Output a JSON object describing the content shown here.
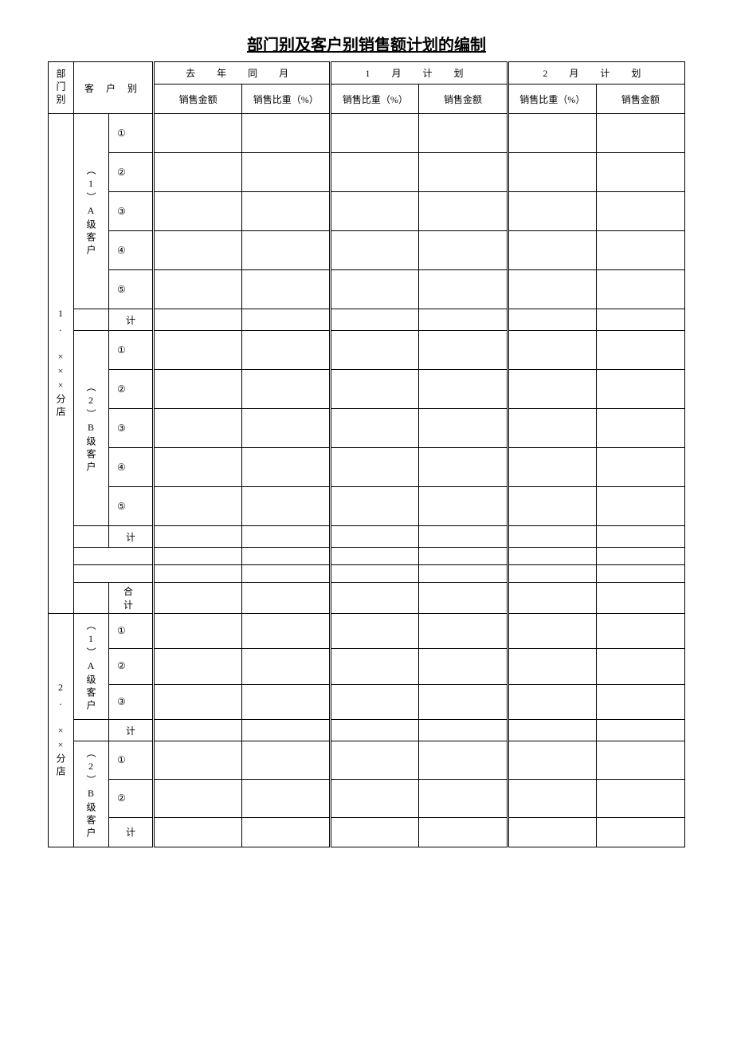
{
  "title": "部门别及客户别销售额计划的编制",
  "header": {
    "dept": "部门别",
    "customer": "客 户 别",
    "groups": {
      "last_year": "去 年 同 月",
      "month1": "1 月 计 划",
      "month2": "2 月 计 划"
    },
    "sub": {
      "sales_amount": "销售金额",
      "sales_ratio": "销售比重（%）"
    }
  },
  "dept1": {
    "label": "1.\n\n×××分店",
    "groupA": {
      "label": "（1）A级客户",
      "items": [
        "①",
        "②",
        "③",
        "④",
        "⑤"
      ],
      "subtotal": "计"
    },
    "groupB": {
      "label": "（2）B级客户",
      "items": [
        "①",
        "②",
        "③",
        "④",
        "⑤"
      ],
      "subtotal": "计"
    },
    "total": "合　计"
  },
  "dept2": {
    "label": "2.\n\n××分店",
    "groupA": {
      "label": "（1）A级客户",
      "items": [
        "①",
        "②",
        "③"
      ],
      "subtotal": "计"
    },
    "groupB": {
      "label": "（2）B级客户",
      "items": [
        "①",
        "②"
      ],
      "subtotal": "计"
    }
  },
  "style": {
    "outer_border_color": "#000000",
    "background_color": "#ffffff",
    "font_family": "SimSun",
    "title_fontsize": 20,
    "cell_fontsize": 12
  }
}
